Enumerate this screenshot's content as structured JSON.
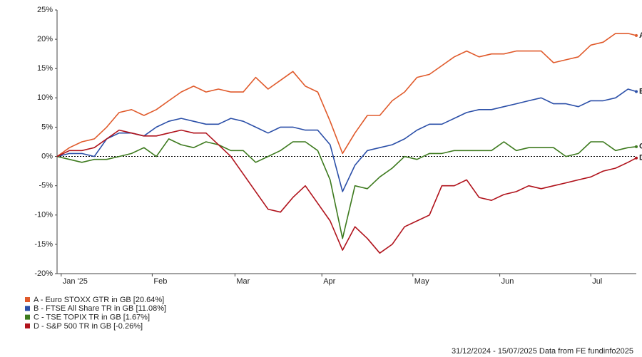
{
  "chart_data": {
    "type": "line",
    "x": [
      0,
      3,
      6,
      9,
      12,
      15,
      18,
      21,
      24,
      27,
      30,
      33,
      36,
      39,
      42,
      45,
      48,
      51,
      54,
      57,
      60,
      63,
      66,
      69,
      72,
      75,
      78,
      81,
      84,
      87,
      90,
      93,
      96,
      99,
      102,
      105,
      108,
      111,
      114,
      117,
      120,
      123,
      126,
      129,
      132,
      135,
      138,
      140
    ],
    "xlim": [
      0,
      140
    ],
    "xticks": [
      {
        "value": 1,
        "label": "Jan '25"
      },
      {
        "value": 23,
        "label": "Feb"
      },
      {
        "value": 43,
        "label": "Mar"
      },
      {
        "value": 64,
        "label": "Apr"
      },
      {
        "value": 86,
        "label": "May"
      },
      {
        "value": 107,
        "label": "Jun"
      },
      {
        "value": 129,
        "label": "Jul"
      }
    ],
    "ylim": [
      -20,
      25
    ],
    "yticks": [
      {
        "value": -20,
        "label": "-20%"
      },
      {
        "value": -15,
        "label": "-15%"
      },
      {
        "value": -10,
        "label": "-10%"
      },
      {
        "value": -5,
        "label": "-5%"
      },
      {
        "value": 0,
        "label": "0%"
      },
      {
        "value": 5,
        "label": "5%"
      },
      {
        "value": 10,
        "label": "10%"
      },
      {
        "value": 15,
        "label": "15%"
      },
      {
        "value": 20,
        "label": "20%"
      },
      {
        "value": 25,
        "label": "25%"
      }
    ],
    "series": [
      {
        "name": "A - Euro STOXX GTR in GB [20.64%]",
        "end_label": "A",
        "color": "#e05a2b",
        "values": [
          0,
          1.5,
          2.5,
          3,
          5,
          7.5,
          8,
          7,
          8,
          9.5,
          11,
          12,
          11,
          11.5,
          11,
          11,
          13.5,
          11.5,
          13,
          14.5,
          12,
          11,
          6,
          0.5,
          4,
          7,
          7,
          9.5,
          11,
          13.5,
          14,
          15.5,
          17,
          18,
          17,
          17.5,
          17.5,
          18,
          18,
          18,
          16,
          16.5,
          17,
          19,
          19.5,
          21,
          21,
          20.64
        ]
      },
      {
        "name": "B - FTSE All Share TR in GB [11.08%]",
        "end_label": "B",
        "color": "#2b4fa8",
        "values": [
          0,
          0.5,
          0.5,
          0,
          3,
          4,
          4,
          3.5,
          5,
          6,
          6.5,
          6,
          5.5,
          5.5,
          6.5,
          6,
          5,
          4,
          5,
          5,
          4.5,
          4.5,
          2,
          -6,
          -1.5,
          1,
          1.5,
          2,
          3,
          4.5,
          5.5,
          5.5,
          6.5,
          7.5,
          8,
          8,
          8.5,
          9,
          9.5,
          10,
          9,
          9,
          8.5,
          9.5,
          9.5,
          10,
          11.5,
          11.08
        ]
      },
      {
        "name": "C - TSE TOPIX TR in GB [1.67%]",
        "end_label": "C",
        "color": "#3d7a1e",
        "values": [
          0,
          -0.5,
          -1,
          -0.5,
          -0.5,
          0,
          0.5,
          1.5,
          0,
          3,
          2,
          1.5,
          2.5,
          2,
          1,
          1,
          -1,
          0,
          1,
          2.5,
          2.5,
          1,
          -4,
          -14,
          -5,
          -5.5,
          -3.5,
          -2,
          0,
          -0.5,
          0.5,
          0.5,
          1,
          1,
          1,
          1,
          2.5,
          1,
          1.5,
          1.5,
          1.5,
          0,
          0.5,
          2.5,
          2.5,
          1,
          1.5,
          1.67
        ]
      },
      {
        "name": "D - S&P 500 TR in GB [-0.26%]",
        "end_label": "D",
        "color": "#b0121b",
        "values": [
          0,
          1,
          1,
          1.5,
          3,
          4.5,
          4,
          3.5,
          3.5,
          4,
          4.5,
          4,
          4,
          2,
          0,
          -3,
          -6,
          -9,
          -9.5,
          -7,
          -5,
          -8,
          -11,
          -16,
          -12,
          -14,
          -16.5,
          -15,
          -12,
          -11,
          -10,
          -5,
          -5,
          -4,
          -7,
          -7.5,
          -6.5,
          -6,
          -5,
          -5.5,
          -5,
          -4.5,
          -4,
          -3.5,
          -2.5,
          -2,
          -1,
          -0.26
        ]
      }
    ],
    "footer": "31/12/2024 - 15/07/2025 Data from FE fundinfo2025"
  }
}
